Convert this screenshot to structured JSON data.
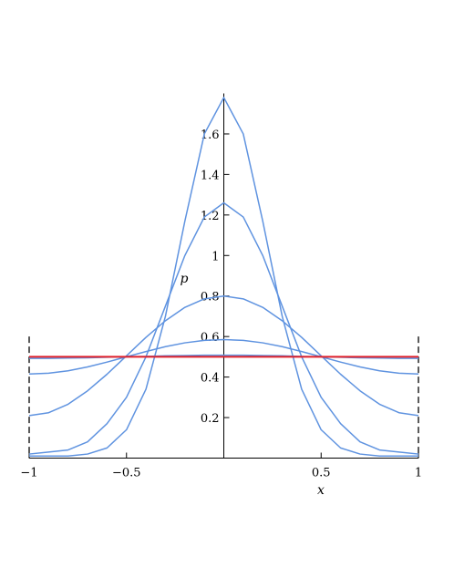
{
  "chart_data": {
    "type": "line",
    "x_label": "x",
    "y_label": "p",
    "x": [
      -1,
      -0.9,
      -0.8,
      -0.7,
      -0.6,
      -0.5,
      -0.4,
      -0.3,
      -0.2,
      -0.1,
      0,
      0.1,
      0.2,
      0.3,
      0.4,
      0.5,
      0.6,
      0.7,
      0.8,
      0.9,
      1
    ],
    "series": [
      {
        "color": "#5f93e0",
        "values": [
          0.01,
          0.01,
          0.01,
          0.02,
          0.05,
          0.14,
          0.34,
          0.7,
          1.17,
          1.6,
          1.78,
          1.6,
          1.17,
          0.7,
          0.34,
          0.14,
          0.05,
          0.02,
          0.01,
          0.01,
          0.01
        ]
      },
      {
        "color": "#5f93e0",
        "values": [
          0.02,
          0.03,
          0.04,
          0.08,
          0.17,
          0.3,
          0.5,
          0.75,
          1.0,
          1.19,
          1.26,
          1.19,
          1.0,
          0.75,
          0.5,
          0.3,
          0.17,
          0.08,
          0.04,
          0.03,
          0.02
        ]
      },
      {
        "color": "#5f93e0",
        "values": [
          0.21,
          0.224,
          0.266,
          0.332,
          0.414,
          0.505,
          0.596,
          0.678,
          0.744,
          0.786,
          0.8,
          0.786,
          0.744,
          0.678,
          0.596,
          0.505,
          0.414,
          0.332,
          0.266,
          0.224,
          0.21
        ]
      },
      {
        "color": "#5f93e0",
        "values": [
          0.415,
          0.419,
          0.431,
          0.45,
          0.474,
          0.5,
          0.526,
          0.55,
          0.569,
          0.581,
          0.585,
          0.581,
          0.569,
          0.55,
          0.526,
          0.5,
          0.474,
          0.45,
          0.431,
          0.419,
          0.415
        ]
      },
      {
        "color": "#5f93e0",
        "values": [
          0.492,
          0.492,
          0.494,
          0.495,
          0.498,
          0.5,
          0.502,
          0.505,
          0.506,
          0.508,
          0.508,
          0.508,
          0.506,
          0.505,
          0.502,
          0.5,
          0.498,
          0.495,
          0.494,
          0.492,
          0.492
        ]
      },
      {
        "color": "#e0202a",
        "values": [
          0.5,
          0.5,
          0.5,
          0.5,
          0.5,
          0.5,
          0.5,
          0.5,
          0.5,
          0.5,
          0.5,
          0.5,
          0.5,
          0.5,
          0.5,
          0.5,
          0.5,
          0.5,
          0.5,
          0.5,
          0.5
        ]
      }
    ],
    "xlim": [
      -1,
      1
    ],
    "ylim": [
      0,
      1.8
    ],
    "xticks": [
      {
        "value": -1,
        "label": "−1"
      },
      {
        "value": -0.5,
        "label": "−0.5"
      },
      0.5,
      1
    ],
    "yticks": [
      0.2,
      0.4,
      0.6,
      0.8,
      1,
      1.2,
      1.4,
      1.6
    ]
  }
}
